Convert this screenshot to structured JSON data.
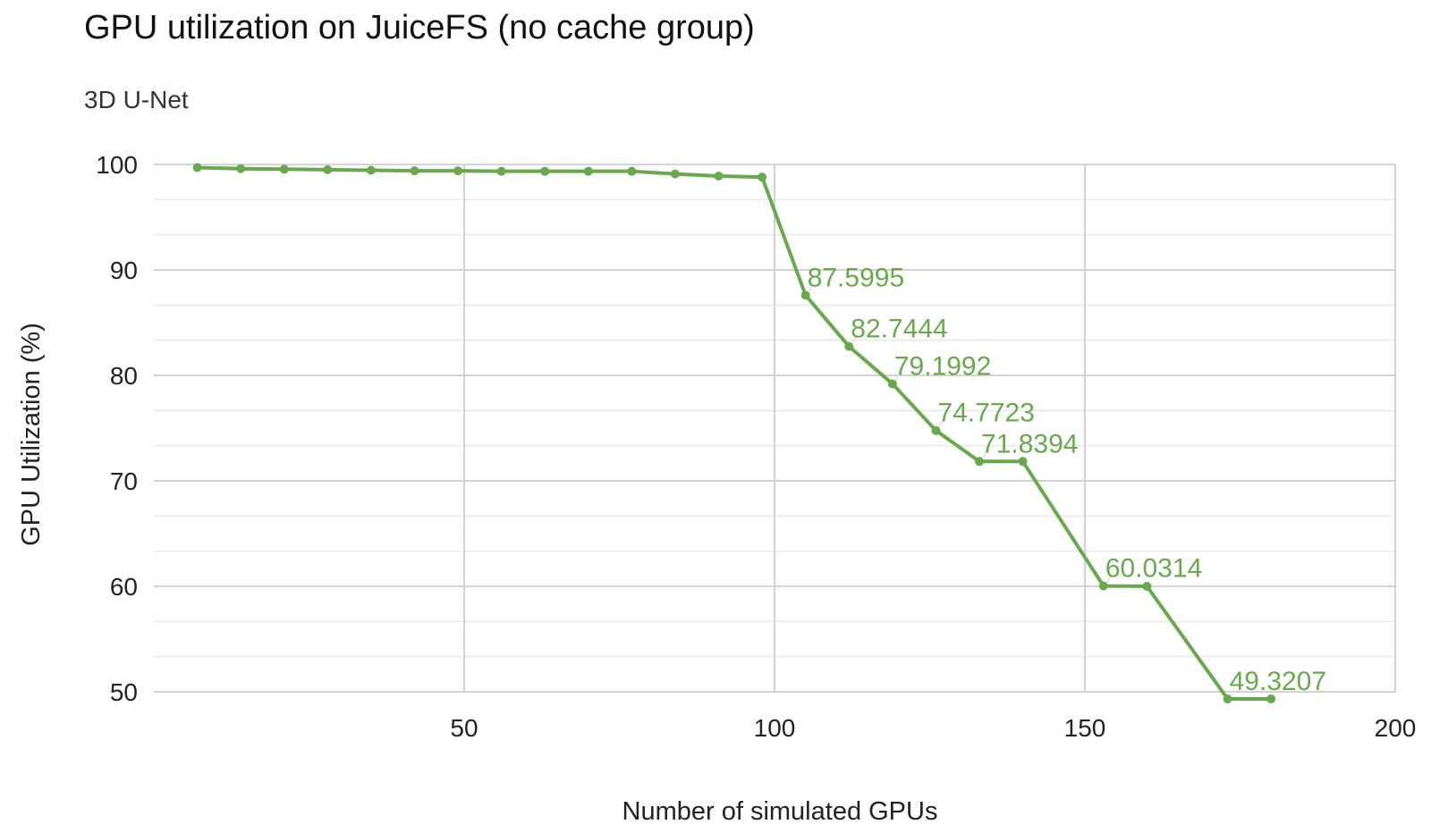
{
  "chart_data": {
    "type": "line",
    "title": "GPU utilization on JuiceFS (no cache group)",
    "subtitle": "3D U-Net",
    "xlabel": "Number of simulated GPUs",
    "ylabel": "GPU Utilization (%)",
    "xlim": [
      0,
      200
    ],
    "ylim": [
      50,
      100
    ],
    "x_ticks": [
      "50",
      "100",
      "150",
      "200"
    ],
    "y_ticks": [
      "100",
      "90",
      "80",
      "70",
      "60",
      "50"
    ],
    "grid": true,
    "color": "#6aa84f",
    "series": [
      {
        "x": [
          7,
          14,
          21,
          28,
          35,
          42,
          49,
          56,
          63,
          70,
          77,
          84,
          91,
          98,
          105,
          112,
          119,
          126,
          133,
          140,
          153,
          160,
          173,
          180
        ],
        "y": [
          99.7,
          99.6,
          99.55,
          99.5,
          99.45,
          99.4,
          99.4,
          99.35,
          99.35,
          99.35,
          99.35,
          99.1,
          98.9,
          98.8,
          87.5995,
          82.7444,
          79.1992,
          74.7723,
          71.8394,
          71.8394,
          60.0314,
          60.0,
          49.3207,
          49.3207
        ],
        "labels": [
          "",
          "",
          "",
          "",
          "",
          "",
          "",
          "",
          "",
          "",
          "",
          "",
          "",
          "",
          "87.5995",
          "82.7444",
          "79.1992",
          "74.7723",
          "71.8394",
          "",
          "60.0314",
          "",
          "49.3207",
          ""
        ]
      }
    ]
  }
}
